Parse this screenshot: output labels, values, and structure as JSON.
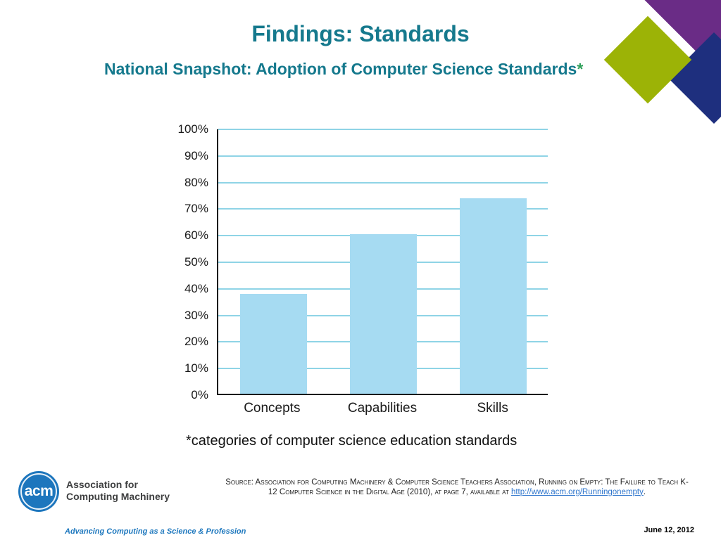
{
  "slide": {
    "title": "Findings: Standards",
    "subtitle": "National Snapshot: Adoption of Computer Science Standards",
    "subtitle_asterisk": "*",
    "chart_caption": "*categories of computer science education standards",
    "date": "June 12, 2012"
  },
  "chart_data": {
    "type": "bar",
    "title": "National Snapshot: Adoption of Computer Science Standards",
    "categories": [
      "Concepts",
      "Capabilities",
      "Skills"
    ],
    "values": [
      37.5,
      60,
      73.5
    ],
    "xlabel": "",
    "ylabel": "",
    "ylim": [
      0,
      100
    ],
    "ytick_step": 10,
    "ytick_labels": [
      "100%",
      "90%",
      "80%",
      "70%",
      "60%",
      "50%",
      "40%",
      "30%",
      "20%",
      "10%",
      "0%"
    ],
    "grid": true,
    "legend_position": "none",
    "footnote": "*categories of computer science education standards",
    "bar_color": "#a6dbf2",
    "grid_color": "#8fd4e6"
  },
  "decor": {
    "purple": "#6a2c86",
    "green": "#9cb306",
    "navy": "#1e2f7e"
  },
  "footer": {
    "acm_logo_text": "acm",
    "org_name_line1": "Association for",
    "org_name_line2": "Computing Machinery",
    "tagline": "Advancing Computing as a Science & Profession",
    "source": {
      "prefix": "Source: Association for Computing Machinery & Computer Science Teachers Association, Running on Empty: The Failure to Teach K-12 Computer Science in the Digital Age (2010), at page 7, available at ",
      "link": "http://www.acm.org/Runningonempty",
      "suffix": "."
    }
  },
  "colors": {
    "title_teal": "#15798d",
    "asterisk_green": "#2fa05a",
    "acm_blue": "#1d76bd",
    "link_blue": "#2e75cc"
  }
}
